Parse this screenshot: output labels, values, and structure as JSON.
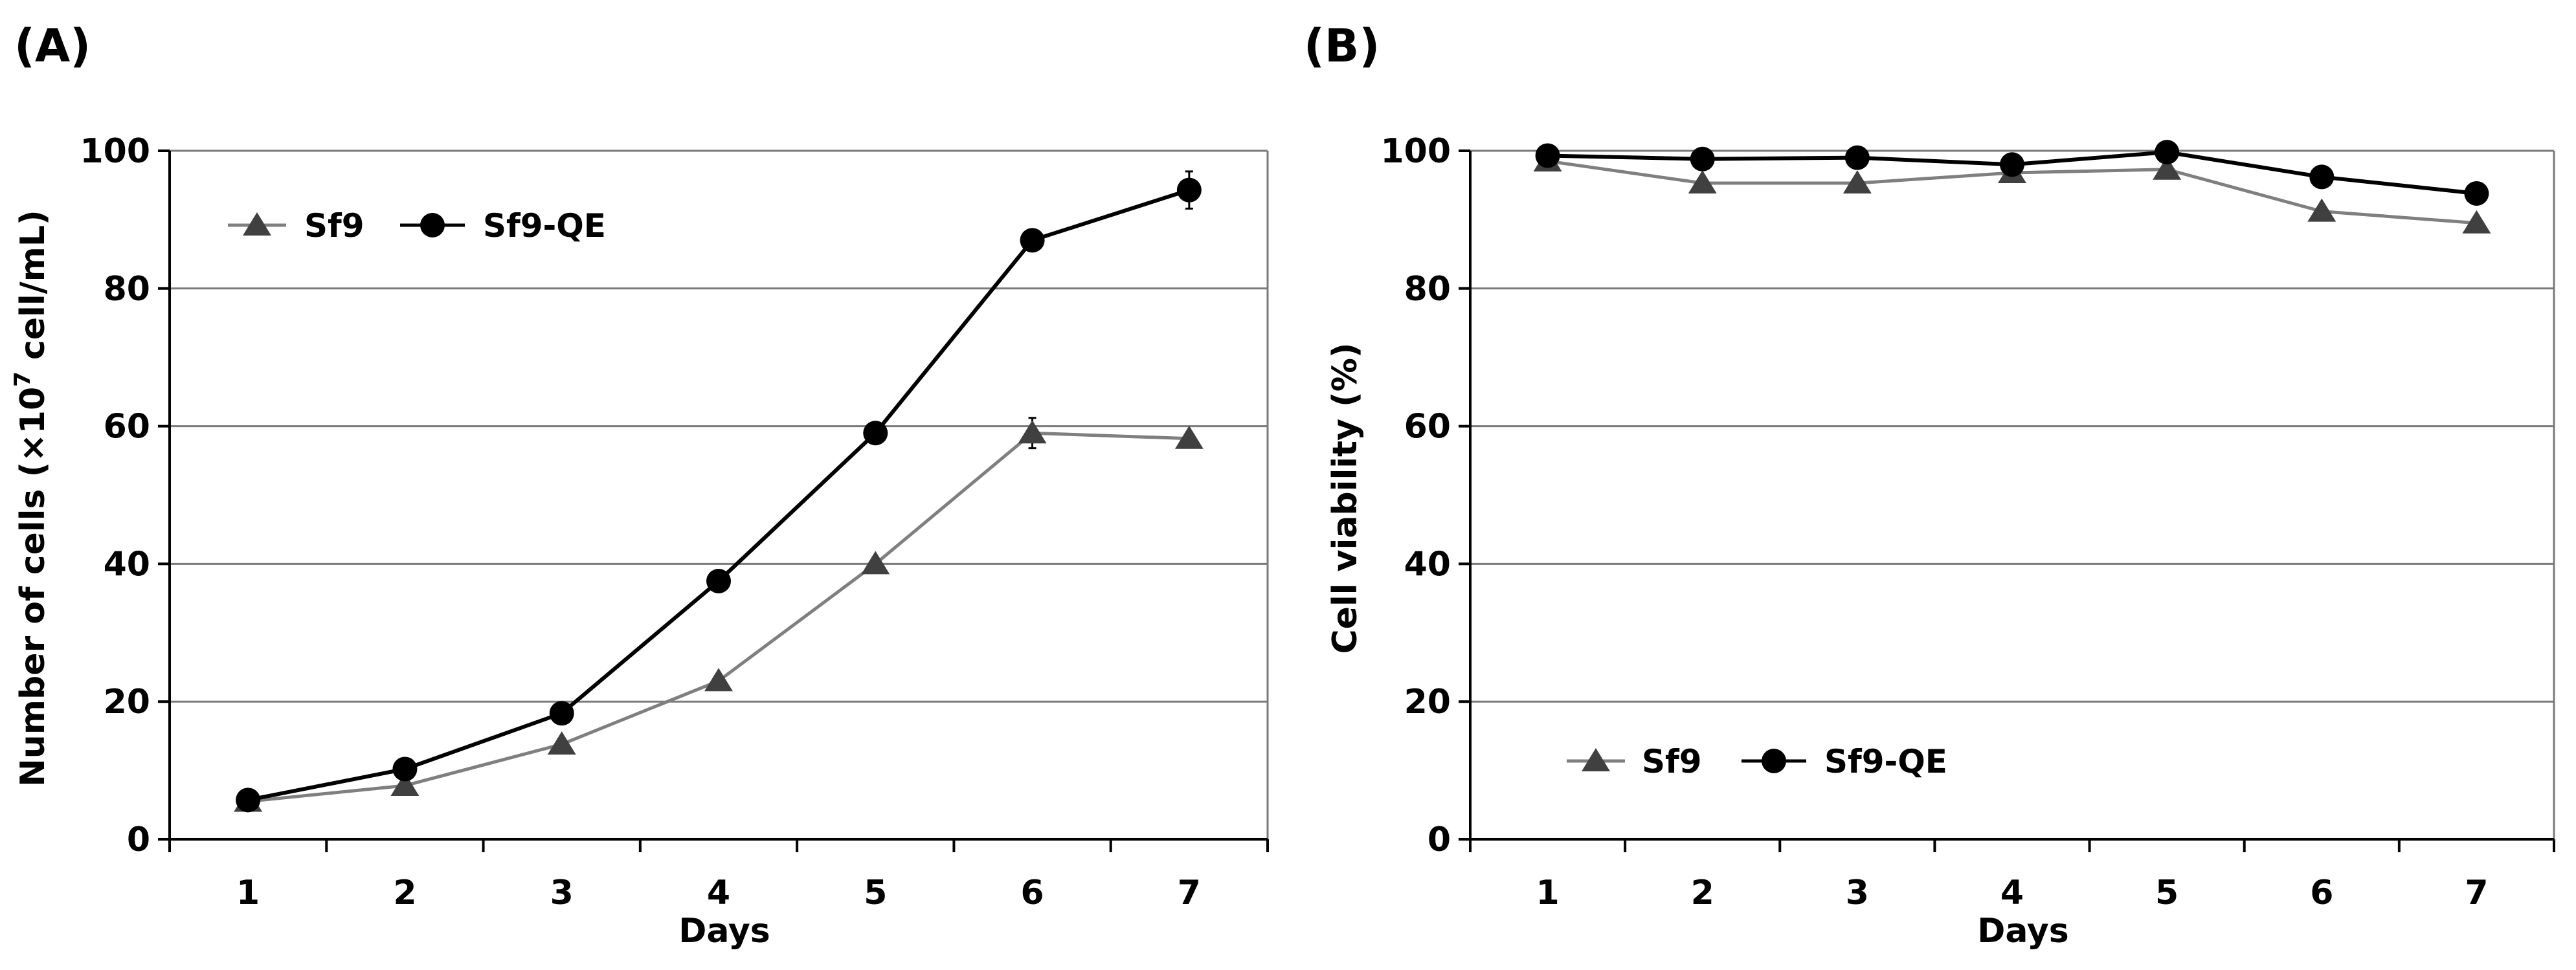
{
  "chart_data": [
    {
      "panel_label": "(A)",
      "type": "line",
      "x": [
        1,
        2,
        3,
        4,
        5,
        6,
        7
      ],
      "xtick_labels": [
        "1",
        "2",
        "3",
        "4",
        "5",
        "6",
        "7"
      ],
      "xlabel": "Days",
      "ylabel_prefix": "Number of cells (×10",
      "ylabel_sup": "7",
      "ylabel_suffix": " cell/mL)",
      "ylim": [
        0,
        100
      ],
      "yticks": [
        0,
        20,
        40,
        60,
        80,
        100
      ],
      "ytick_labels": [
        "0",
        "20",
        "40",
        "60",
        "80",
        "100"
      ],
      "grid": true,
      "legend_position": "top-left",
      "series": [
        {
          "name": "Sf9",
          "marker": "triangle",
          "color": "#7f7f7f",
          "marker_color": "#404040",
          "values": [
            5.5,
            7.8,
            13.8,
            23.0,
            40.0,
            59.0,
            58.2
          ],
          "errors": [
            0.4,
            0.4,
            0.5,
            0.6,
            0.7,
            2.2,
            0.6
          ]
        },
        {
          "name": "Sf9-QE",
          "marker": "circle",
          "color": "#000000",
          "marker_color": "#000000",
          "values": [
            5.7,
            10.2,
            18.3,
            37.5,
            59.0,
            87.0,
            94.3
          ],
          "errors": [
            0.4,
            0.4,
            0.5,
            0.5,
            0.6,
            0.6,
            2.7
          ]
        }
      ]
    },
    {
      "panel_label": "(B)",
      "type": "line",
      "x": [
        1,
        2,
        3,
        4,
        5,
        6,
        7
      ],
      "xtick_labels": [
        "1",
        "2",
        "3",
        "4",
        "5",
        "6",
        "7"
      ],
      "xlabel": "Days",
      "ylabel_prefix": "Cell viability (%)",
      "ylabel_sup": "",
      "ylabel_suffix": "",
      "ylim": [
        0,
        100
      ],
      "yticks": [
        0,
        20,
        40,
        60,
        80,
        100
      ],
      "ytick_labels": [
        "0",
        "20",
        "40",
        "60",
        "80",
        "100"
      ],
      "grid": true,
      "legend_position": "bottom-left",
      "series": [
        {
          "name": "Sf9",
          "marker": "triangle",
          "color": "#7f7f7f",
          "marker_color": "#404040",
          "values": [
            98.5,
            95.3,
            95.3,
            96.8,
            97.3,
            91.2,
            89.5
          ],
          "errors": [
            0,
            0,
            0,
            0,
            0,
            0,
            0
          ]
        },
        {
          "name": "Sf9-QE",
          "marker": "circle",
          "color": "#000000",
          "marker_color": "#000000",
          "values": [
            99.3,
            98.8,
            99.0,
            98.0,
            99.8,
            96.2,
            93.8
          ],
          "errors": [
            0,
            0,
            0,
            0,
            0,
            0,
            0
          ]
        }
      ]
    }
  ]
}
